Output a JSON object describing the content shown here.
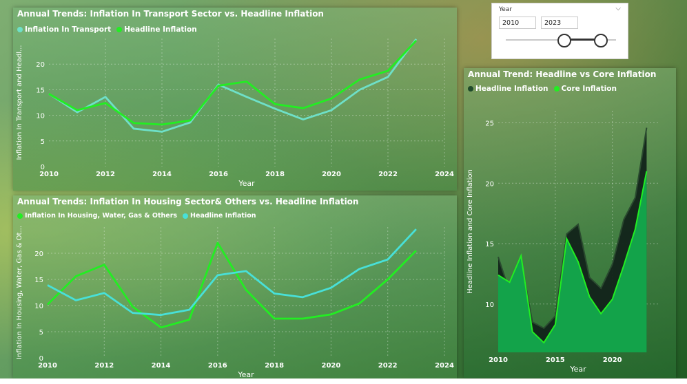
{
  "slicer": {
    "title": "Year",
    "from": "2010",
    "to": "2023",
    "range": [
      2010,
      2023
    ],
    "selected": [
      2010,
      2023
    ]
  },
  "chart_data": [
    {
      "type": "line",
      "title": "Annual Trends: Inflation In Transport Sector vs. Headline Inflation",
      "xlabel": "Year",
      "ylabel": "Inflation In Transport and Headl...",
      "xlim": [
        2010,
        2024
      ],
      "ylim": [
        0,
        25
      ],
      "xticks": [
        "2010",
        "2012",
        "2014",
        "2016",
        "2018",
        "2020",
        "2022",
        "2024"
      ],
      "yticks": [
        "0",
        "5",
        "10",
        "15",
        "20"
      ],
      "legend": "top-left",
      "grid": true,
      "x": [
        2010,
        2011,
        2012,
        2013,
        2014,
        2015,
        2016,
        2017,
        2018,
        2019,
        2020,
        2021,
        2022,
        2023
      ],
      "series": [
        {
          "name": "Inflation In Transport",
          "color": "#6ee0c8",
          "values": [
            14.2,
            10.6,
            13.6,
            7.4,
            6.8,
            8.6,
            16.0,
            13.6,
            11.3,
            9.2,
            11.0,
            15.0,
            17.5,
            24.9
          ]
        },
        {
          "name": "Headline Inflation",
          "color": "#22ee22",
          "values": [
            14.2,
            11.0,
            12.4,
            8.5,
            8.2,
            9.0,
            15.8,
            16.6,
            12.2,
            11.4,
            13.3,
            17.0,
            18.7,
            24.6
          ]
        }
      ]
    },
    {
      "type": "line",
      "title": "Annual Trends: Inflation In Housing Sector& Others vs. Headline Inflation",
      "xlabel": "Year",
      "ylabel": "Inflation In Housing, Water, Gas & Ot...",
      "xlim": [
        2010,
        2024
      ],
      "ylim": [
        0,
        25
      ],
      "xticks": [
        "2010",
        "2012",
        "2014",
        "2016",
        "2018",
        "2020",
        "2022",
        "2024"
      ],
      "yticks": [
        "0",
        "5",
        "10",
        "15",
        "20"
      ],
      "legend": "top-left",
      "grid": true,
      "x": [
        2010,
        2011,
        2012,
        2013,
        2014,
        2015,
        2016,
        2017,
        2018,
        2019,
        2020,
        2021,
        2022,
        2023
      ],
      "series": [
        {
          "name": "Inflation In Housing, Water, Gas & Others",
          "color": "#22ee22",
          "values": [
            10.2,
            15.6,
            17.8,
            9.8,
            5.8,
            7.3,
            22.0,
            13.0,
            7.5,
            7.5,
            8.3,
            10.4,
            15.0,
            20.5
          ]
        },
        {
          "name": "Headline Inflation",
          "color": "#48e0d8",
          "values": [
            13.9,
            11.0,
            12.4,
            8.6,
            8.2,
            9.2,
            15.8,
            16.6,
            12.3,
            11.6,
            13.4,
            17.0,
            18.8,
            24.6
          ]
        }
      ]
    },
    {
      "type": "area",
      "title": "Annual Trend: Headline vs Core Inflation",
      "xlabel": "Year",
      "ylabel": "Headline Inflation and Core Inflation",
      "xlim": [
        2010,
        2024
      ],
      "ylim": [
        6,
        26
      ],
      "xticks": [
        "2010",
        "2015",
        "2020"
      ],
      "yticks": [
        "10",
        "15",
        "20",
        "25"
      ],
      "legend": "top-left",
      "grid": true,
      "x": [
        2010,
        2011,
        2012,
        2013,
        2014,
        2015,
        2016,
        2017,
        2018,
        2019,
        2020,
        2021,
        2022,
        2023
      ],
      "series": [
        {
          "name": "Headline Inflation",
          "color": "#12231a",
          "values": [
            13.9,
            11.0,
            13.6,
            8.5,
            8.0,
            9.0,
            15.8,
            16.6,
            12.2,
            11.3,
            13.3,
            17.0,
            18.8,
            24.6
          ]
        },
        {
          "name": "Core Inflation",
          "color": "#22ee22",
          "values": [
            12.4,
            11.8,
            14.0,
            7.7,
            6.8,
            8.3,
            15.4,
            13.5,
            10.6,
            9.2,
            10.4,
            13.2,
            16.2,
            21.0
          ]
        }
      ]
    }
  ]
}
